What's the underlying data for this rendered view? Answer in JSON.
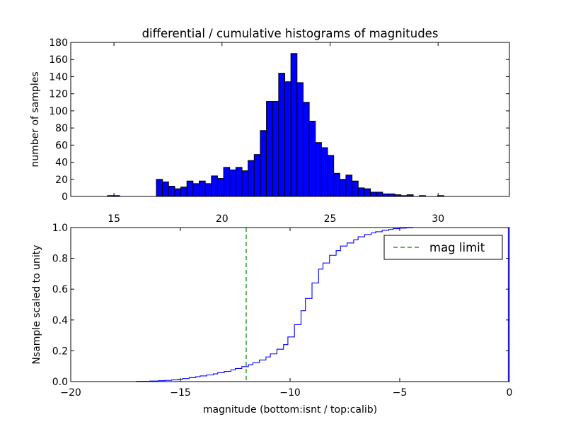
{
  "chart_data": [
    {
      "type": "bar",
      "title": "differential / cumulative histograms of magnitudes",
      "ylabel": "number of samples",
      "xlabel_shared": "magnitude (bottom:isnt / top:calib)",
      "xlim": [
        13.0,
        33.3
      ],
      "ylim": [
        0,
        180
      ],
      "x_ticks": [
        15,
        20,
        25,
        30
      ],
      "y_ticks": [
        0,
        20,
        40,
        60,
        80,
        100,
        120,
        140,
        160,
        180
      ],
      "bar_color": "#0000ff",
      "bin_start": 13.0,
      "bin_width": 0.283,
      "counts": [
        0,
        0,
        0,
        0,
        0,
        0,
        1,
        1,
        0,
        0,
        0,
        0,
        0,
        0,
        20,
        17,
        12,
        9,
        11,
        18,
        15,
        18,
        15,
        24,
        21,
        34,
        31,
        34,
        30,
        42,
        49,
        77,
        111,
        111,
        144,
        134,
        167,
        133,
        110,
        88,
        63,
        57,
        48,
        27,
        20,
        25,
        18,
        10,
        9,
        5,
        5,
        3,
        3,
        2,
        1,
        2,
        0,
        1,
        0,
        0,
        1,
        0,
        0,
        0,
        0,
        0,
        0,
        0,
        0,
        0,
        0,
        0
      ]
    },
    {
      "type": "line",
      "style": "step",
      "xlabel": "magnitude (bottom:isnt / top:calib)",
      "ylabel": "Nsample scaled to unity",
      "xlim": [
        -20,
        0
      ],
      "ylim": [
        0.0,
        1.0
      ],
      "x_ticks": [
        -20,
        -15,
        -10,
        -5,
        0
      ],
      "y_ticks": [
        0.0,
        0.2,
        0.4,
        0.6,
        0.8,
        1.0
      ],
      "x_tick_labels": [
        "−20",
        "−15",
        "−10",
        "−5",
        "0"
      ],
      "y_tick_labels": [
        "0.0",
        "0.2",
        "0.4",
        "0.6",
        "0.8",
        "1.0"
      ],
      "series_color": "#0000ff",
      "x": [
        -20.0,
        -18.0,
        -17.0,
        -16.4,
        -16.0,
        -15.7,
        -15.4,
        -15.1,
        -14.9,
        -14.6,
        -14.3,
        -14.1,
        -13.8,
        -13.5,
        -13.3,
        -13.0,
        -12.7,
        -12.5,
        -12.2,
        -11.9,
        -11.7,
        -11.4,
        -11.1,
        -10.9,
        -10.6,
        -10.3,
        -10.1,
        -9.8,
        -9.5,
        -9.3,
        -9.0,
        -8.7,
        -8.5,
        -8.2,
        -7.9,
        -7.7,
        -7.4,
        -7.1,
        -6.9,
        -6.6,
        -6.3,
        -6.1,
        -5.8,
        -5.5,
        -5.3,
        -5.0,
        -4.7,
        -4.4,
        -0.1,
        -0.05
      ],
      "y": [
        0.0,
        0.0,
        0.002,
        0.004,
        0.006,
        0.008,
        0.011,
        0.014,
        0.02,
        0.026,
        0.032,
        0.037,
        0.043,
        0.05,
        0.058,
        0.066,
        0.076,
        0.085,
        0.097,
        0.11,
        0.123,
        0.14,
        0.16,
        0.18,
        0.21,
        0.24,
        0.29,
        0.37,
        0.46,
        0.54,
        0.64,
        0.73,
        0.77,
        0.82,
        0.85,
        0.88,
        0.9,
        0.92,
        0.94,
        0.955,
        0.965,
        0.973,
        0.982,
        0.988,
        0.993,
        0.996,
        0.998,
        1.0,
        1.0,
        0.0
      ],
      "vline": {
        "x": -12.0,
        "label": "mag limit",
        "color": "#007f00"
      },
      "legend_position": "top-right"
    }
  ]
}
